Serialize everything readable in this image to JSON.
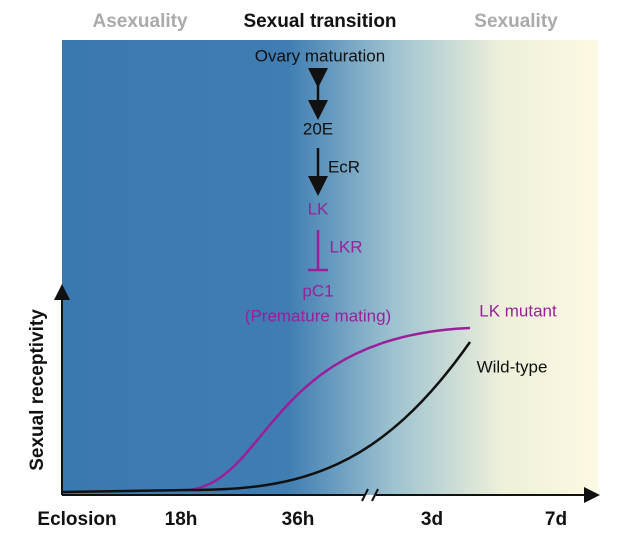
{
  "header": {
    "left": "Asexuality",
    "center": "Sexual transition",
    "right": "Sexuality"
  },
  "pathway": {
    "nodes": [
      "Ovary maturation",
      "20E",
      "LK",
      "pC1",
      "(Premature mating)"
    ],
    "edges": [
      "EcR",
      "LKR"
    ]
  },
  "curves": {
    "mutant": "LK mutant",
    "wild_type": "Wild-type"
  },
  "axes": {
    "y_label": "Sexual receptivity",
    "x_labels": [
      "Eclosion",
      "18h",
      "36h",
      "3d",
      "7d"
    ]
  }
}
